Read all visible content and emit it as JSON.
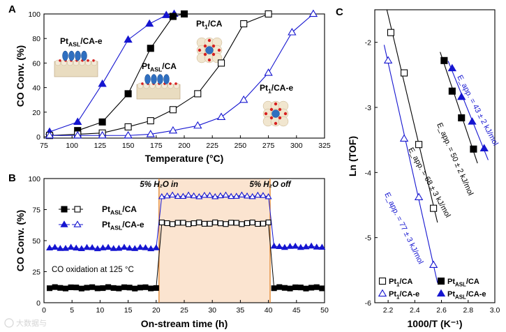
{
  "figure": {
    "watermark": "大数据与"
  },
  "chart_data": [
    {
      "panel": "A",
      "type": "line",
      "xlabel": "Temperature (°C)",
      "ylabel": "CO Conv. (%)",
      "xlim": [
        75,
        325
      ],
      "ylim": [
        0,
        100
      ],
      "xticks": [
        75,
        100,
        125,
        150,
        175,
        200,
        225,
        250,
        275,
        300,
        325
      ],
      "yticks": [
        0,
        20,
        40,
        60,
        80,
        100
      ],
      "series": [
        {
          "name": "Pt_ASL/CA-e",
          "color": "#1515d0",
          "marker": "triangle",
          "filled": true,
          "x": [
            80,
            105,
            127,
            150,
            169,
            184,
            191
          ],
          "y": [
            4,
            12,
            43,
            79,
            92,
            99,
            100
          ]
        },
        {
          "name": "Pt_ASL/CA",
          "color": "#000000",
          "marker": "square",
          "filled": true,
          "x": [
            105,
            127,
            150,
            170,
            190,
            200
          ],
          "y": [
            5,
            12,
            35,
            72,
            98,
            100
          ]
        },
        {
          "name": "Pt1/CA",
          "color": "#000000",
          "marker": "square",
          "filled": false,
          "x": [
            80,
            105,
            127,
            150,
            170,
            190,
            212,
            233,
            253,
            275
          ],
          "y": [
            1,
            2,
            3,
            8,
            13,
            22,
            35,
            60,
            92,
            100
          ]
        },
        {
          "name": "Pt1/CA-e",
          "color": "#1515d0",
          "marker": "triangle",
          "filled": false,
          "x": [
            80,
            105,
            127,
            150,
            170,
            190,
            212,
            233,
            253,
            275,
            296,
            315
          ],
          "y": [
            1,
            1,
            1,
            1,
            2,
            5,
            9,
            16,
            30,
            52,
            85,
            100
          ]
        }
      ],
      "annotations": [
        {
          "base": "Pt",
          "sub": "ASL",
          "rest": "/CA-e"
        },
        {
          "base": "Pt",
          "sub": "ASL",
          "rest": "/CA"
        },
        {
          "base": "Pt",
          "sub": "1",
          "rest": "/CA"
        },
        {
          "base": "Pt",
          "sub": "1",
          "rest": "/CA-e"
        }
      ]
    },
    {
      "panel": "B",
      "type": "line",
      "xlabel": "On-stream time (h)",
      "ylabel": "CO Conv. (%)",
      "xlim": [
        0,
        50
      ],
      "ylim": [
        0,
        100
      ],
      "xticks": [
        0,
        5,
        10,
        15,
        20,
        25,
        30,
        35,
        40,
        45,
        50
      ],
      "yticks": [
        0,
        25,
        50,
        75,
        100
      ],
      "shaded_region": [
        20.5,
        40.3
      ],
      "events": [
        {
          "x": 20.5,
          "label": "5% H₂O in"
        },
        {
          "x": 40.3,
          "label": "5% H₂O off"
        }
      ],
      "condition_label": "CO oxidation at 125 °C",
      "series": [
        {
          "name": "Pt_ASL/CA (dry)",
          "color": "#000000",
          "marker": "square",
          "filled": true,
          "x_start": 1.0,
          "x_end": 20.0,
          "y": 12
        },
        {
          "name": "Pt_ASL/CA-e (dry)",
          "color": "#1515d0",
          "marker": "triangle",
          "filled": true,
          "x_start": 1.0,
          "x_end": 20.0,
          "y": 44
        },
        {
          "name": "Pt_ASL/CA (H2O)",
          "color": "#000000",
          "marker": "square",
          "filled": false,
          "x_start": 21.0,
          "x_end": 40.0,
          "y": 64
        },
        {
          "name": "Pt_ASL/CA-e (H2O)",
          "color": "#1515d0",
          "marker": "triangle",
          "filled": false,
          "x_start": 21.0,
          "x_end": 40.0,
          "y": 86
        },
        {
          "name": "Pt_ASL/CA (after)",
          "color": "#000000",
          "marker": "square",
          "filled": true,
          "x_start": 41.0,
          "x_end": 50.0,
          "y": 12
        },
        {
          "name": "Pt_ASL/CA-e (after)",
          "color": "#1515d0",
          "marker": "triangle",
          "filled": true,
          "x_start": 41.0,
          "x_end": 50.0,
          "y": 45
        }
      ],
      "legend": [
        {
          "base": "Pt",
          "sub": "ASL",
          "rest": "/CA",
          "color": "#000000",
          "marker": "square"
        },
        {
          "base": "Pt",
          "sub": "ASL",
          "rest": "/CA-e",
          "color": "#1515d0",
          "marker": "triangle"
        }
      ]
    },
    {
      "panel": "C",
      "type": "scatter",
      "xlabel": "1000/T (K⁻¹)",
      "ylabel": "Ln (TOF)",
      "xlim": [
        2.1,
        3.0
      ],
      "ylim": [
        -6,
        -1.5
      ],
      "xticks": [
        2.2,
        2.4,
        2.6,
        2.8,
        3.0
      ],
      "yticks": [
        -6,
        -5,
        -4,
        -3,
        -2
      ],
      "series": [
        {
          "name": "Pt1/CA",
          "color": "#000000",
          "marker": "square",
          "filled": false,
          "x": [
            2.22,
            2.32,
            2.43,
            2.54
          ],
          "y": [
            -1.85,
            -2.47,
            -3.57,
            -4.55
          ],
          "fit_label": "E_app. = 68 ± 3 kJ/mol"
        },
        {
          "name": "Pt1/CA-e",
          "color": "#1515d0",
          "marker": "triangle",
          "filled": false,
          "x": [
            2.2,
            2.32,
            2.43,
            2.54
          ],
          "y": [
            -2.28,
            -3.48,
            -4.38,
            -5.42
          ],
          "fit_label": "E_app. = 77 ± 3 kJ/mol"
        },
        {
          "name": "Pt_ASL/CA",
          "color": "#000000",
          "marker": "square",
          "filled": true,
          "x": [
            2.62,
            2.68,
            2.75,
            2.84
          ],
          "y": [
            -2.28,
            -2.75,
            -3.16,
            -3.64
          ],
          "fit_label": "E_app. = 50 ± 2 kJ/mol"
        },
        {
          "name": "Pt_ASL/CA-e",
          "color": "#1515d0",
          "marker": "triangle",
          "filled": true,
          "x": [
            2.68,
            2.75,
            2.83,
            2.92
          ],
          "y": [
            -2.4,
            -2.84,
            -3.22,
            -3.63
          ],
          "fit_label": "E_app. = 43 ± 2 kJ/mol"
        }
      ],
      "legend": [
        {
          "base": "Pt",
          "sub": "1",
          "rest": "/CA",
          "color": "#000000",
          "marker": "square",
          "filled": false
        },
        {
          "base": "Pt",
          "sub": "ASL",
          "rest": "/CA",
          "color": "#000000",
          "marker": "square",
          "filled": true
        },
        {
          "base": "Pt",
          "sub": "1",
          "rest": "/CA-e",
          "color": "#1515d0",
          "marker": "triangle",
          "filled": false
        },
        {
          "base": "Pt",
          "sub": "ASL",
          "rest": "/CA-e",
          "color": "#1515d0",
          "marker": "triangle",
          "filled": true
        }
      ]
    }
  ],
  "labels": {
    "panel_a": "A",
    "panel_b": "B",
    "panel_c": "C"
  }
}
